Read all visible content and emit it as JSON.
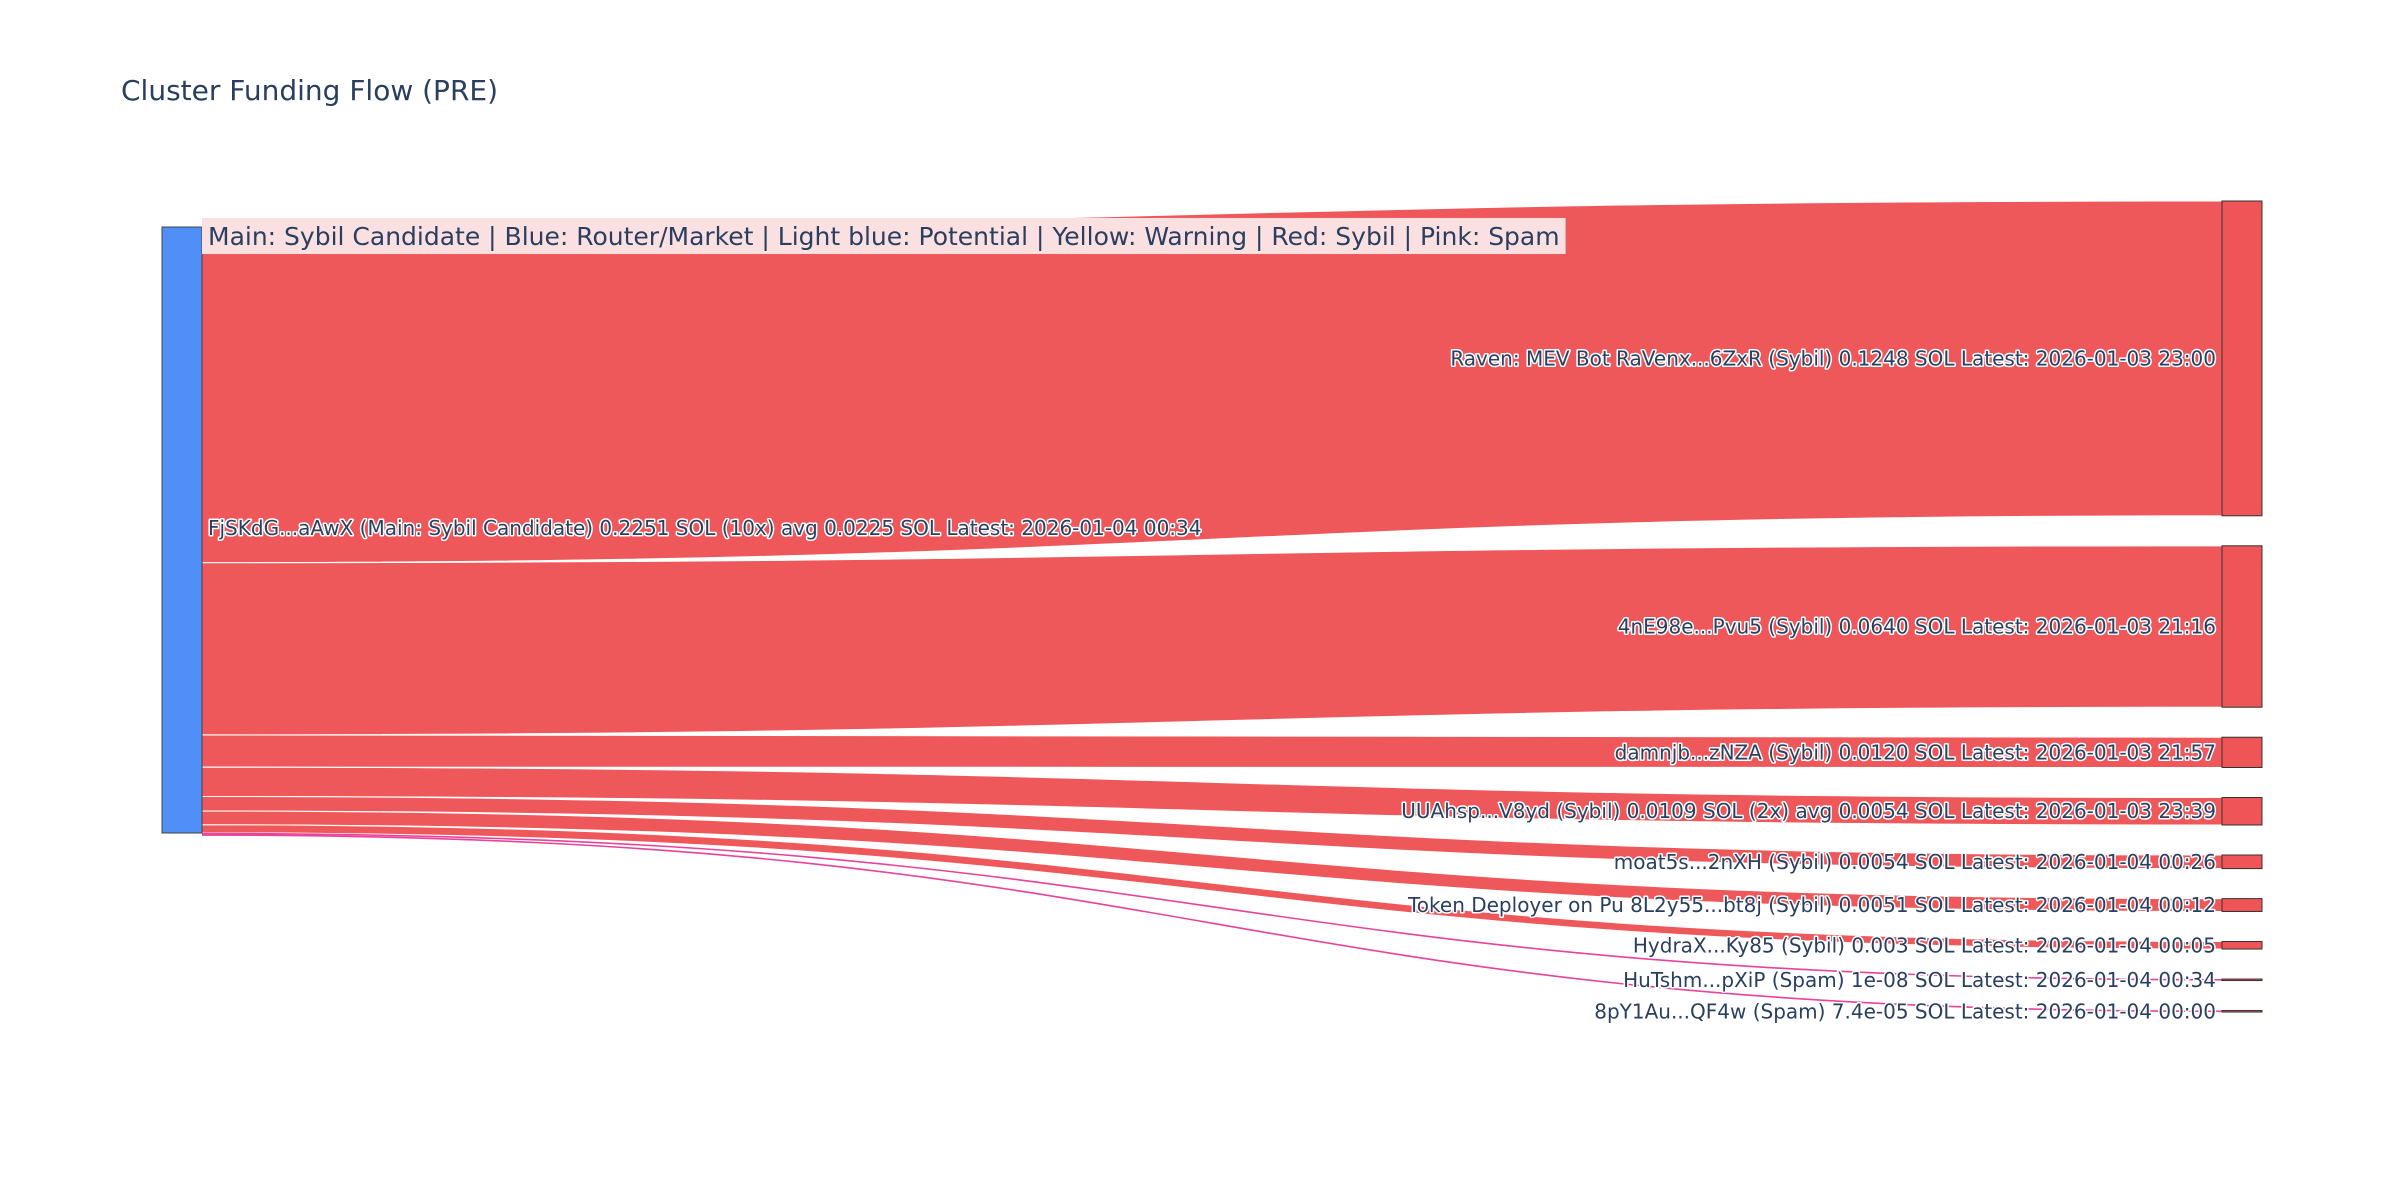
{
  "chart_data": {
    "type": "sankey",
    "title": "Cluster Funding Flow (PRE)",
    "legend_text": "Main: Sybil Candidate  |  Blue: Router/Market | Light blue: Potential | Yellow: Warning | Red: Sybil | Pink: Spam",
    "colors": {
      "source_node": "#4f8ff7",
      "sybil_link": "#ef5557",
      "spam_link": "#e8429a",
      "target_node": "#ef5557",
      "legend_bg": "#fbe0e1"
    },
    "source": {
      "label": "FjSKdG...aAwX (Main: Sybil Candidate) 0.2251 SOL (10x) avg 0.0225 SOL Latest: 2026-01-04 00:34",
      "value": 0.2251
    },
    "targets": [
      {
        "label": "Raven: MEV Bot RaVenx...6ZxR (Sybil) 0.1248 SOL Latest: 2026-01-03 23:00",
        "value": 0.1248,
        "category": "Sybil"
      },
      {
        "label": "4nE98e...Pvu5 (Sybil) 0.0640 SOL Latest: 2026-01-03 21:16",
        "value": 0.064,
        "category": "Sybil"
      },
      {
        "label": "damnjb...zNZA (Sybil) 0.0120 SOL Latest: 2026-01-03 21:57",
        "value": 0.012,
        "category": "Sybil"
      },
      {
        "label": "UUAhsp...V8yd (Sybil) 0.0109 SOL (2x) avg 0.0054 SOL Latest: 2026-01-03 23:39",
        "value": 0.0109,
        "category": "Sybil"
      },
      {
        "label": "moat5s...2nXH (Sybil) 0.0054 SOL Latest: 2026-01-04 00:26",
        "value": 0.0054,
        "category": "Sybil"
      },
      {
        "label": "Token Deployer on Pu 8L2y55...bt8j (Sybil) 0.0051 SOL Latest: 2026-01-04 00:12",
        "value": 0.0051,
        "category": "Sybil"
      },
      {
        "label": "HydraX...Ky85 (Sybil) 0.003 SOL Latest: 2026-01-04 00:05",
        "value": 0.003,
        "category": "Sybil"
      },
      {
        "label": "HuTshm...pXiP (Spam) 1e-08 SOL Latest: 2026-01-04 00:34",
        "value": 1e-08,
        "category": "Spam"
      },
      {
        "label": "8pY1Au...QF4w (Spam) 7.4e-05 SOL Latest: 2026-01-04 00:00",
        "value": 7.4e-05,
        "category": "Spam"
      }
    ]
  }
}
